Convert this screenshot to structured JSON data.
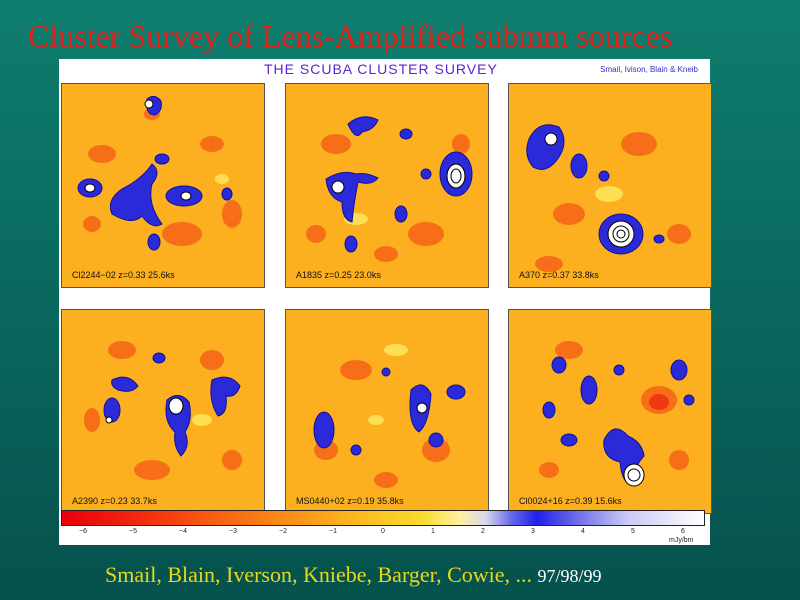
{
  "title": "Cluster Survey of  Lens-Amplified submm sources",
  "figure": {
    "header": "THE SCUBA CLUSTER SURVEY",
    "authors": "Smail, Ivison, Blain & Kneib",
    "panels": [
      {
        "label": "Cl2244−02  z=0.33  25.6ks"
      },
      {
        "label": "A1835  z=0.25  23.0ks"
      },
      {
        "label": "A370  z=0.37  33.8ks"
      },
      {
        "label": "A2390  z=0.23  33.7ks"
      },
      {
        "label": "MS0440+02  z=0.19  35.8ks"
      },
      {
        "label": "Cl0024+16  z=0.39  15.6ks"
      }
    ],
    "colorbar": {
      "ticks": [
        "−6",
        "−5",
        "−4",
        "−3",
        "−2",
        "−1",
        "0",
        "1",
        "2",
        "3",
        "4",
        "5",
        "6"
      ],
      "unit": "mJy/bm"
    }
  },
  "footer": {
    "authors": "Smail, Blain, Iverson, Kniebe, Barger, Cowie, ...",
    "years": "97/98/99"
  }
}
